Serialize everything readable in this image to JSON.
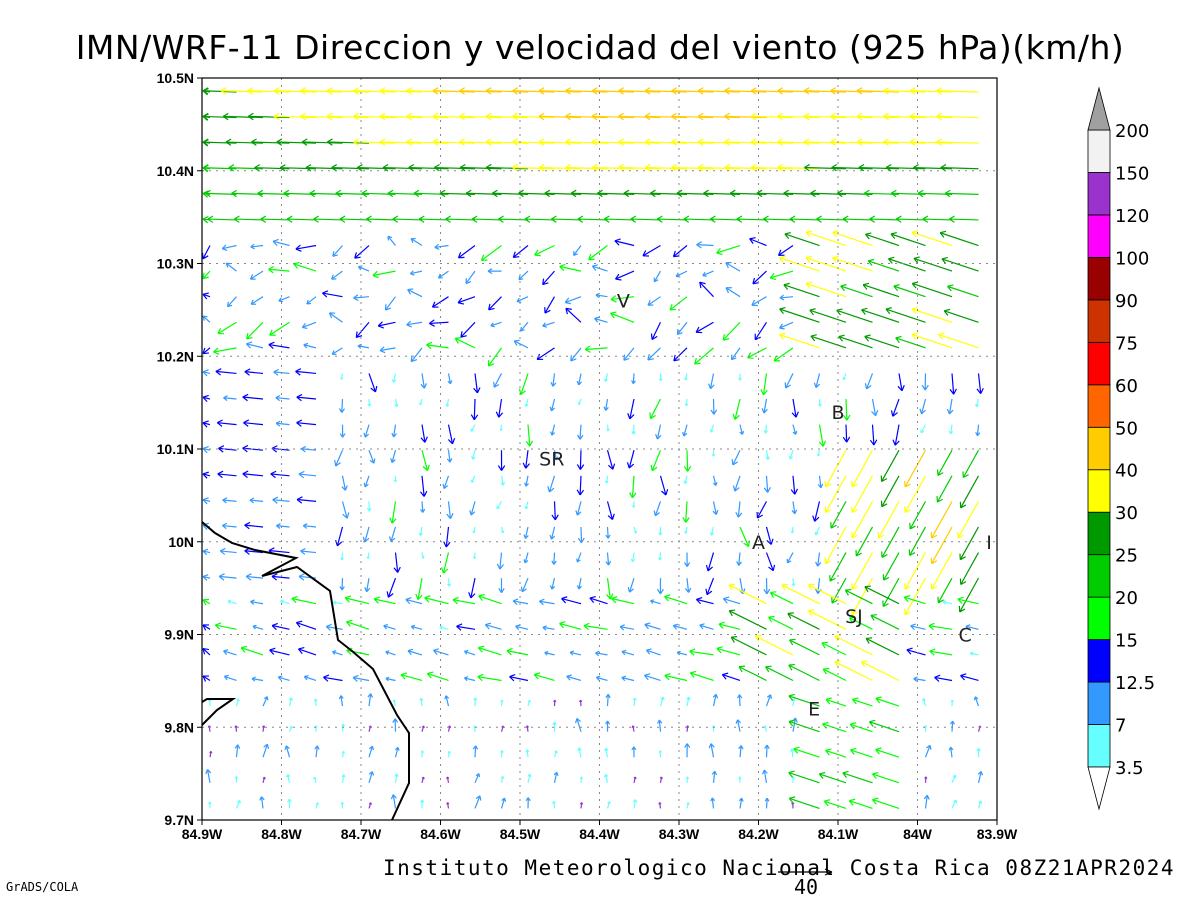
{
  "title": "IMN/WRF-11 Direccion y velocidad del viento (925 hPa)(km/h)",
  "footer": "Instituto Meteorologico Nacional Costa Rica 08Z21APR2024",
  "software": "GrADS/COLA",
  "reference_vector": {
    "value": 40,
    "label": "40"
  },
  "map": {
    "lon_range": [
      -84.9,
      -83.9
    ],
    "lat_range": [
      9.7,
      10.5
    ],
    "x_tick_labels": [
      "84.9W",
      "84.8W",
      "84.7W",
      "84.6W",
      "84.5W",
      "84.4W",
      "84.3W",
      "84.2W",
      "84.1W",
      "84W",
      "83.9W"
    ],
    "y_tick_labels": [
      "9.7N",
      "9.8N",
      "9.9N",
      "10N",
      "10.1N",
      "10.2N",
      "10.3N",
      "10.4N",
      "10.5N"
    ],
    "grid": "dotted",
    "stations": [
      {
        "label": "V",
        "lon": -84.37,
        "lat": 10.26
      },
      {
        "label": "B",
        "lon": -84.1,
        "lat": 10.14
      },
      {
        "label": "SR",
        "lon": -84.46,
        "lat": 10.09
      },
      {
        "label": "A",
        "lon": -84.2,
        "lat": 10.0
      },
      {
        "label": "I",
        "lon": -83.91,
        "lat": 10.0
      },
      {
        "label": "SJ",
        "lon": -84.08,
        "lat": 9.92
      },
      {
        "label": "C",
        "lon": -83.94,
        "lat": 9.9
      },
      {
        "label": "E",
        "lon": -84.13,
        "lat": 9.82
      }
    ]
  },
  "colorbar": {
    "labels": [
      "3.5",
      "7",
      "12.5",
      "15",
      "20",
      "25",
      "30",
      "40",
      "50",
      "60",
      "75",
      "90",
      "100",
      "120",
      "150",
      "200"
    ],
    "colors": [
      "#66ffff",
      "#3399ff",
      "#0000ff",
      "#00ff00",
      "#00cc00",
      "#009900",
      "#ffff00",
      "#ffcc00",
      "#ff6600",
      "#ff0000",
      "#cc3300",
      "#990000",
      "#ff00ff",
      "#9933cc",
      "#f2f2f2",
      "#a0a0a0"
    ]
  }
}
